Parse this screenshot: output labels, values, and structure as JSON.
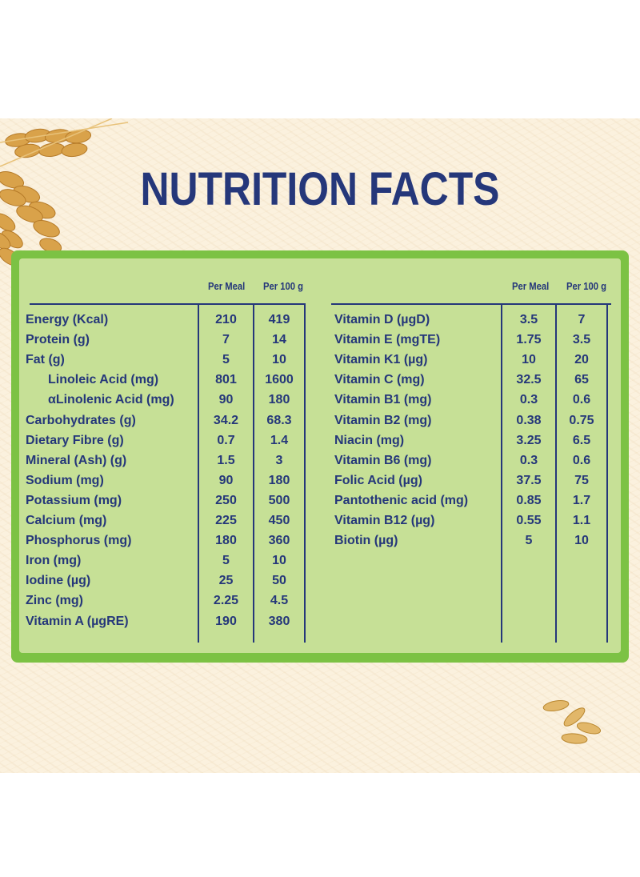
{
  "title": "NUTRITION FACTS",
  "headers": {
    "per_meal": "Per Meal",
    "per_100g": "Per 100 g"
  },
  "left_rows": [
    {
      "label": "Energy (Kcal)",
      "per_meal": "210",
      "per_100g": "419",
      "indent": false
    },
    {
      "label": "Protein (g)",
      "per_meal": "7",
      "per_100g": "14",
      "indent": false
    },
    {
      "label": "Fat (g)",
      "per_meal": "5",
      "per_100g": "10",
      "indent": false
    },
    {
      "label": "Linoleic Acid (mg)",
      "per_meal": "801",
      "per_100g": "1600",
      "indent": true
    },
    {
      "label": "αLinolenic Acid (mg)",
      "per_meal": "90",
      "per_100g": "180",
      "indent": true
    },
    {
      "label": "Carbohydrates (g)",
      "per_meal": "34.2",
      "per_100g": "68.3",
      "indent": false
    },
    {
      "label": "Dietary Fibre (g)",
      "per_meal": "0.7",
      "per_100g": "1.4",
      "indent": false
    },
    {
      "label": "Mineral (Ash) (g)",
      "per_meal": "1.5",
      "per_100g": "3",
      "indent": false
    },
    {
      "label": "Sodium (mg)",
      "per_meal": "90",
      "per_100g": "180",
      "indent": false
    },
    {
      "label": "Potassium (mg)",
      "per_meal": "250",
      "per_100g": "500",
      "indent": false
    },
    {
      "label": "Calcium (mg)",
      "per_meal": "225",
      "per_100g": "450",
      "indent": false
    },
    {
      "label": "Phosphorus (mg)",
      "per_meal": "180",
      "per_100g": "360",
      "indent": false
    },
    {
      "label": "Iron (mg)",
      "per_meal": "5",
      "per_100g": "10",
      "indent": false
    },
    {
      "label": "Iodine (µg)",
      "per_meal": "25",
      "per_100g": "50",
      "indent": false
    },
    {
      "label": "Zinc (mg)",
      "per_meal": "2.25",
      "per_100g": "4.5",
      "indent": false
    },
    {
      "label": "Vitamin A (µgRE)",
      "per_meal": "190",
      "per_100g": "380",
      "indent": false
    }
  ],
  "right_rows": [
    {
      "label": "Vitamin D (µgD)",
      "per_meal": "3.5",
      "per_100g": "7"
    },
    {
      "label": "Vitamin E (mgTE)",
      "per_meal": "1.75",
      "per_100g": "3.5"
    },
    {
      "label": "Vitamin K1 (µg)",
      "per_meal": "10",
      "per_100g": "20"
    },
    {
      "label": "Vitamin C (mg)",
      "per_meal": "32.5",
      "per_100g": "65"
    },
    {
      "label": "Vitamin B1 (mg)",
      "per_meal": "0.3",
      "per_100g": "0.6"
    },
    {
      "label": "Vitamin B2 (mg)",
      "per_meal": "0.38",
      "per_100g": "0.75"
    },
    {
      "label": "Niacin (mg)",
      "per_meal": "3.25",
      "per_100g": "6.5"
    },
    {
      "label": "Vitamin B6 (mg)",
      "per_meal": "0.3",
      "per_100g": "0.6"
    },
    {
      "label": "Folic Acid (µg)",
      "per_meal": "37.5",
      "per_100g": "75"
    },
    {
      "label": "Pantothenic acid (mg)",
      "per_meal": "0.85",
      "per_100g": "1.7"
    },
    {
      "label": "Vitamin B12 (µg)",
      "per_meal": "0.55",
      "per_100g": "1.1"
    },
    {
      "label": "Biotin (µg)",
      "per_meal": "5",
      "per_100g": "10"
    }
  ],
  "colors": {
    "navy": "#25377a",
    "panel_green": "#c6e096",
    "border_green": "#7cc244",
    "background": "#fbf1de"
  },
  "decorations": [
    "wheat-ears-icon",
    "grain-seeds-icon"
  ]
}
